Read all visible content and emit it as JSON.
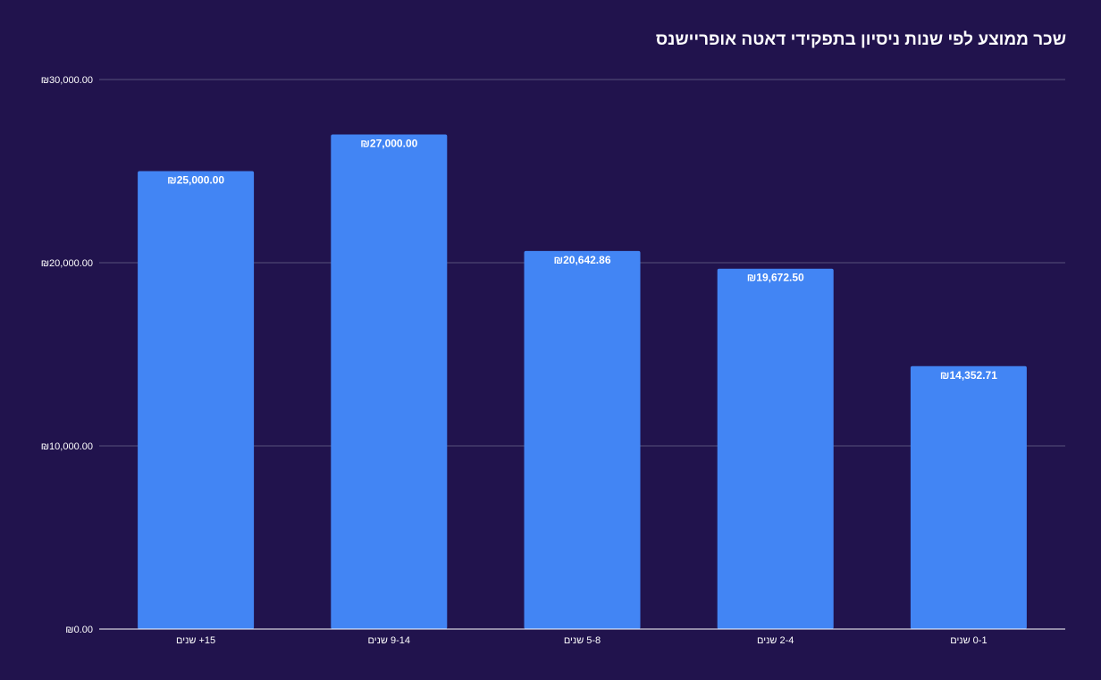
{
  "colors": {
    "background": "#21134d",
    "bar": "#4285f4",
    "grid": "#57517a",
    "axis": "#ffffff",
    "text": "#ffffff"
  },
  "chart_data": {
    "type": "bar",
    "title": "שכר ממוצע לפי שנות ניסיון בתפקידי דאטה אופריישנס",
    "xlabel": "",
    "ylabel": "",
    "categories": [
      "15+ שנים",
      "9-14 שנים",
      "5-8 שנים",
      "2-4 שנים",
      "0-1 שנים"
    ],
    "series": [
      {
        "values": [
          25000.0,
          27000.0,
          20642.86,
          19672.5,
          14352.71
        ]
      }
    ],
    "data_labels": [
      "₪25,000.00",
      "₪27,000.00",
      "₪20,642.86",
      "₪19,672.50",
      "₪14,352.71"
    ],
    "y_ticks": [
      0,
      10000,
      20000,
      30000
    ],
    "y_tick_labels": [
      "₪0.00",
      "₪10,000.00",
      "₪20,000.00",
      "₪30,000.00"
    ],
    "ylim": [
      0,
      30000
    ],
    "grid": true,
    "legend": "none"
  }
}
